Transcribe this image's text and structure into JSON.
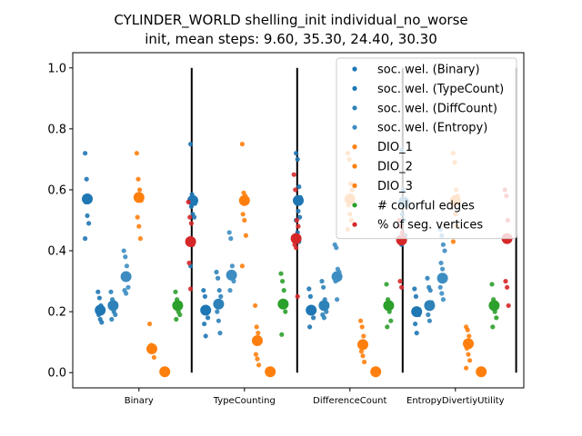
{
  "chart_data": {
    "type": "scatter",
    "title_lines": [
      "CYLINDER_WORLD shelling_init individual_no_worse",
      "init, mean steps: 9.60, 35.30, 24.40, 30.30"
    ],
    "xlabel": "",
    "ylabel": "",
    "ylim": [
      -0.05,
      1.05
    ],
    "yticks": [
      "0.0",
      "0.2",
      "0.4",
      "0.6",
      "0.8",
      "1.0"
    ],
    "categories": [
      "Binary",
      "TypeCounting",
      "DifferenceCount",
      "EntropyDivertiyUtility"
    ],
    "grid": false,
    "legend_position": "top-right",
    "series": [
      {
        "name": "soc. wel. (Binary)",
        "color": "#1f77b4",
        "offset": 0,
        "means": [
          0.57,
          0.565,
          0.565,
          0.56
        ],
        "points": [
          [
            0.72,
            0.635,
            0.58,
            0.575,
            0.56,
            0.515,
            0.49,
            0.44
          ],
          [
            0.75,
            0.585,
            0.575,
            0.555,
            0.545,
            0.52,
            0.51,
            0.35
          ],
          [
            0.72,
            0.7,
            0.61,
            0.575,
            0.56,
            0.53,
            0.51,
            0.5,
            0.46,
            0.43
          ],
          [
            0.73,
            0.6,
            0.56,
            0.55,
            0.52,
            0.5,
            0.45,
            0.42
          ]
        ]
      },
      {
        "name": "soc. wel. (TypeCount)",
        "color": "#1f77b4",
        "offset": 1,
        "means": [
          0.205,
          0.205,
          0.205,
          0.2
        ],
        "points": [
          [
            0.265,
            0.245,
            0.22,
            0.2,
            0.19,
            0.175,
            0.165
          ],
          [
            0.27,
            0.25,
            0.2,
            0.18,
            0.16,
            0.12
          ],
          [
            0.275,
            0.25,
            0.2,
            0.18,
            0.15
          ],
          [
            0.275,
            0.25,
            0.2,
            0.19,
            0.16,
            0.13
          ]
        ]
      },
      {
        "name": "soc. wel. (DiffCount)",
        "color": "#2e82b9",
        "offset": 2,
        "means": [
          0.22,
          0.225,
          0.22,
          0.22
        ],
        "points": [
          [
            0.265,
            0.24,
            0.2,
            0.19,
            0.175
          ],
          [
            0.33,
            0.31,
            0.27,
            0.25,
            0.2,
            0.17,
            0.13
          ],
          [
            0.3,
            0.28,
            0.24,
            0.2,
            0.19,
            0.18
          ],
          [
            0.31,
            0.28,
            0.27,
            0.23,
            0.19,
            0.17
          ]
        ]
      },
      {
        "name": "soc. wel. (Entropy)",
        "color": "#3d8dc2",
        "offset": 3,
        "means": [
          0.315,
          0.32,
          0.315,
          0.31
        ],
        "points": [
          [
            0.4,
            0.38,
            0.35,
            0.28,
            0.27,
            0.26
          ],
          [
            0.46,
            0.44,
            0.35,
            0.3,
            0.27
          ],
          [
            0.42,
            0.41,
            0.34,
            0.33,
            0.3,
            0.24
          ],
          [
            0.47,
            0.45,
            0.42,
            0.4,
            0.36,
            0.34,
            0.31,
            0.28,
            0.26,
            0.24
          ]
        ]
      },
      {
        "name": "DIO_1",
        "color": "#ff7f0e",
        "offset": 4,
        "means": [
          0.575,
          0.565,
          0.57,
          0.565
        ],
        "points": [
          [
            0.72,
            0.635,
            0.6,
            0.565,
            0.51,
            0.48,
            0.44
          ],
          [
            0.75,
            0.59,
            0.58,
            0.56,
            0.52,
            0.5,
            0.45,
            0.35
          ],
          [
            0.72,
            0.7,
            0.62,
            0.6,
            0.55,
            0.52,
            0.5,
            0.47
          ],
          [
            0.72,
            0.69,
            0.6,
            0.58,
            0.55,
            0.52,
            0.48,
            0.43
          ]
        ]
      },
      {
        "name": "DIO_2",
        "color": "#ff7f0e",
        "offset": 5,
        "means": [
          0.078,
          0.105,
          0.092,
          0.095
        ],
        "points": [
          [
            0.16,
            0.09,
            0.07,
            0.05
          ],
          [
            0.22,
            0.15,
            0.13,
            0.1,
            0.06,
            0.045,
            0.025
          ],
          [
            0.17,
            0.15,
            0.12,
            0.09,
            0.07,
            0.055,
            0.035
          ],
          [
            0.15,
            0.14,
            0.12,
            0.1,
            0.08,
            0.06,
            0.04,
            0.015
          ]
        ]
      },
      {
        "name": "DIO_3",
        "color": "#ff7f0e",
        "offset": 6,
        "means": [
          0.003,
          0.003,
          0.003,
          0.003
        ],
        "points": [
          [
            0.003,
            0.0
          ],
          [
            0.003,
            0.0
          ],
          [
            0.003,
            0.0
          ],
          [
            0.003,
            0.0
          ]
        ]
      },
      {
        "name": "# colorful edges",
        "color": "#2ca02c",
        "offset": 7,
        "means": [
          0.22,
          0.225,
          0.22,
          0.22
        ],
        "points": [
          [
            0.265,
            0.24,
            0.2,
            0.19,
            0.175
          ],
          [
            0.325,
            0.3,
            0.27,
            0.2,
            0.125
          ],
          [
            0.29,
            0.24,
            0.2,
            0.17,
            0.15
          ],
          [
            0.29,
            0.24,
            0.2,
            0.18,
            0.15
          ]
        ]
      },
      {
        "name": "% of seg. vertices",
        "color": "#d62728",
        "offset": 8,
        "means": [
          0.43,
          0.44,
          0.435,
          0.44
        ],
        "points": [
          [
            0.56,
            0.51,
            0.49,
            0.42,
            0.36,
            0.275
          ],
          [
            0.65,
            0.6,
            0.5,
            0.48,
            0.42,
            0.41,
            0.25
          ],
          [
            0.5,
            0.48,
            0.46,
            0.43,
            0.3,
            0.28
          ],
          [
            0.6,
            0.58,
            0.5,
            0.44,
            0.3,
            0.28,
            0.22
          ]
        ]
      }
    ]
  }
}
